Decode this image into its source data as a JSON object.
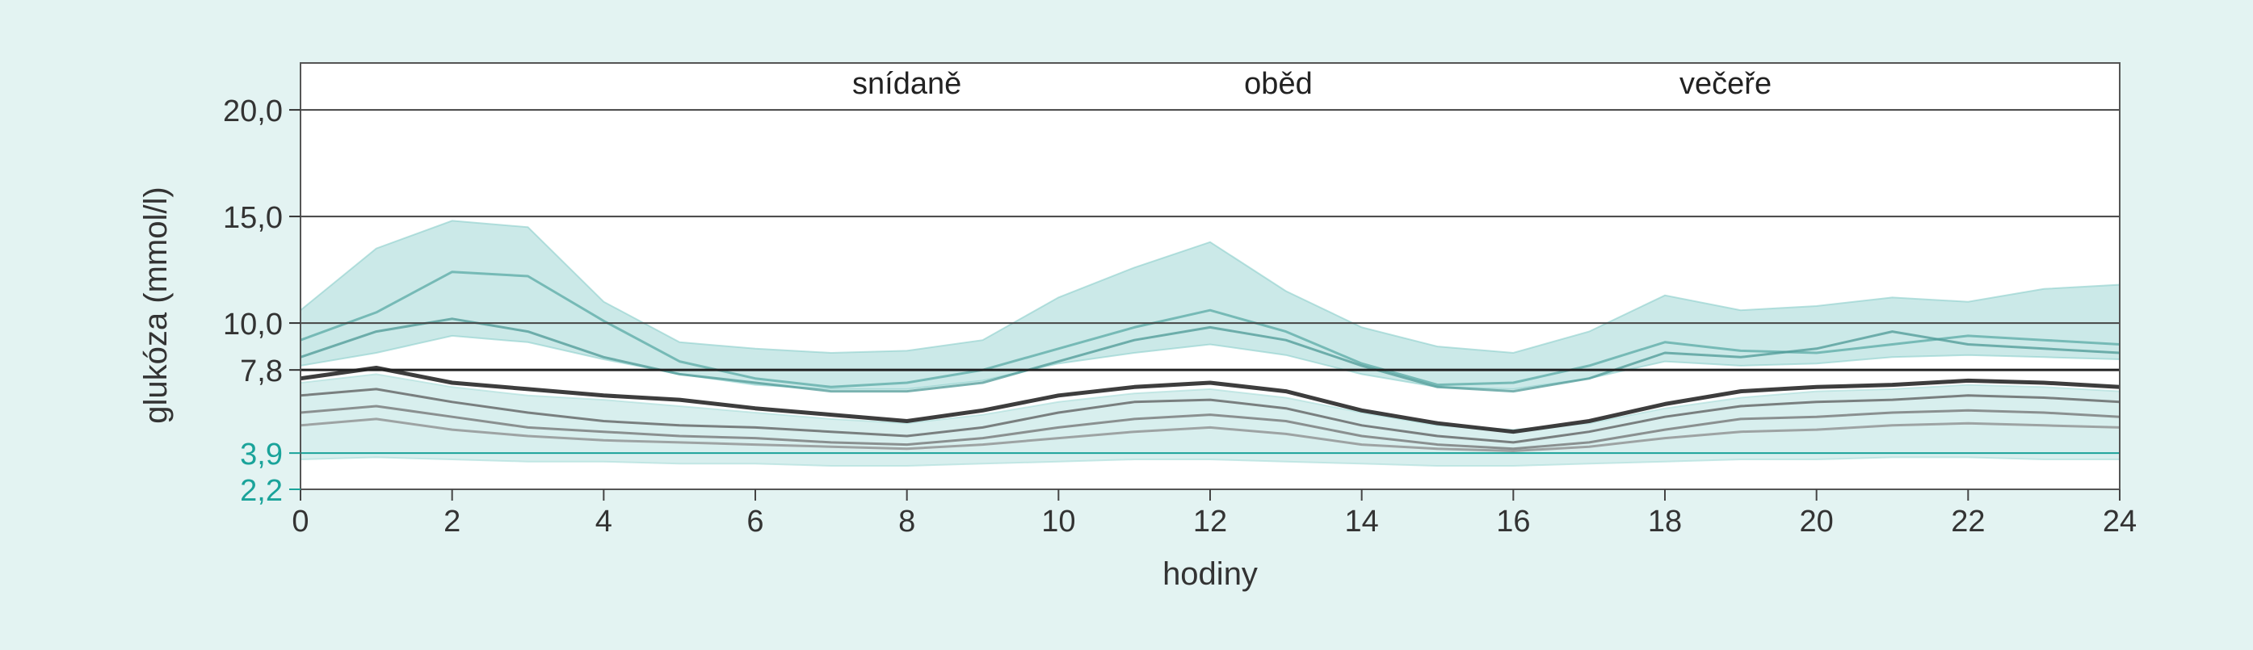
{
  "chart_data": {
    "type": "line",
    "title": "",
    "xlabel": "hodiny",
    "ylabel": "glukóza (mmol/l)",
    "xlim": [
      0,
      24
    ],
    "ylim": [
      2.2,
      22.2
    ],
    "x_ticks": [
      "0",
      "2",
      "4",
      "6",
      "8",
      "10",
      "12",
      "14",
      "16",
      "18",
      "20",
      "22",
      "24"
    ],
    "y_ticks": [
      {
        "value": 2.2,
        "label": "2,2",
        "color": "#1aa39a"
      },
      {
        "value": 3.9,
        "label": "3,9",
        "color": "#1aa39a"
      },
      {
        "value": 7.8,
        "label": "7,8",
        "color": "#333333"
      },
      {
        "value": 10.0,
        "label": "10,0",
        "color": "#333333"
      },
      {
        "value": 15.0,
        "label": "15,0",
        "color": "#333333"
      },
      {
        "value": 20.0,
        "label": "20,0",
        "color": "#333333"
      }
    ],
    "reference_lines": [
      {
        "value": 3.9,
        "color": "#1aa39a"
      },
      {
        "value": 7.8,
        "color": "#222222"
      },
      {
        "value": 10.0,
        "color": "#444444"
      },
      {
        "value": 15.0,
        "color": "#444444"
      },
      {
        "value": 20.0,
        "color": "#444444"
      }
    ],
    "annotations": [
      {
        "x": 8.0,
        "text": "snídaně"
      },
      {
        "x": 12.9,
        "text": "oběd"
      },
      {
        "x": 18.8,
        "text": "večeře"
      }
    ],
    "x": [
      0,
      1,
      2,
      3,
      4,
      5,
      6,
      7,
      8,
      9,
      10,
      11,
      12,
      13,
      14,
      15,
      16,
      17,
      18,
      19,
      20,
      21,
      22,
      23,
      24
    ],
    "series": [
      {
        "color": "#333333",
        "values": [
          7.4,
          7.9,
          7.2,
          6.9,
          6.6,
          6.4,
          6.0,
          5.7,
          5.4,
          5.9,
          6.6,
          7.0,
          7.2,
          6.8,
          5.9,
          5.3,
          4.9,
          5.4,
          6.2,
          6.8,
          7.0,
          7.1,
          7.3,
          7.2,
          7.0
        ]
      },
      {
        "color": "#5a5a5a",
        "values": [
          6.6,
          6.9,
          6.3,
          5.8,
          5.4,
          5.2,
          5.1,
          4.9,
          4.7,
          5.1,
          5.8,
          6.3,
          6.4,
          6.0,
          5.2,
          4.7,
          4.4,
          4.9,
          5.6,
          6.1,
          6.3,
          6.4,
          6.6,
          6.5,
          6.3
        ]
      },
      {
        "color": "#707070",
        "values": [
          5.8,
          6.1,
          5.6,
          5.1,
          4.9,
          4.7,
          4.6,
          4.4,
          4.3,
          4.6,
          5.1,
          5.5,
          5.7,
          5.4,
          4.7,
          4.3,
          4.1,
          4.4,
          5.0,
          5.5,
          5.6,
          5.8,
          5.9,
          5.8,
          5.6
        ]
      },
      {
        "color": "#8a8a8a",
        "values": [
          5.2,
          5.5,
          5.0,
          4.7,
          4.5,
          4.4,
          4.3,
          4.2,
          4.1,
          4.3,
          4.6,
          4.9,
          5.1,
          4.8,
          4.3,
          4.1,
          4.0,
          4.2,
          4.6,
          4.9,
          5.0,
          5.2,
          5.3,
          5.2,
          5.1
        ]
      },
      {
        "color": "#5aa9a6",
        "values": [
          9.2,
          10.5,
          12.4,
          12.2,
          10.1,
          8.2,
          7.4,
          7.0,
          7.2,
          7.8,
          8.8,
          9.8,
          10.6,
          9.6,
          8.1,
          7.1,
          7.2,
          8.0,
          9.1,
          8.7,
          8.6,
          9.0,
          9.4,
          9.2,
          9.0
        ]
      },
      {
        "color": "#4c9895",
        "values": [
          8.4,
          9.6,
          10.2,
          9.6,
          8.4,
          7.6,
          7.2,
          6.8,
          6.8,
          7.2,
          8.2,
          9.2,
          9.8,
          9.2,
          8.0,
          7.0,
          6.8,
          7.4,
          8.6,
          8.4,
          8.8,
          9.6,
          9.0,
          8.8,
          8.6
        ]
      }
    ],
    "bands": [
      {
        "color": "#8ccfcc",
        "upper": [
          10.6,
          13.5,
          14.8,
          14.5,
          11.0,
          9.1,
          8.8,
          8.6,
          8.7,
          9.2,
          11.2,
          12.6,
          13.8,
          11.5,
          9.8,
          8.9,
          8.6,
          9.6,
          11.3,
          10.6,
          10.8,
          11.2,
          11.0,
          11.6,
          11.8
        ],
        "lower": [
          8.0,
          8.6,
          9.4,
          9.1,
          8.3,
          7.6,
          7.1,
          6.9,
          6.9,
          7.3,
          8.1,
          8.6,
          9.0,
          8.5,
          7.6,
          7.0,
          6.9,
          7.4,
          8.2,
          8.0,
          8.1,
          8.4,
          8.5,
          8.4,
          8.3
        ]
      },
      {
        "color": "#a9dcd9",
        "upper": [
          7.2,
          7.6,
          7.0,
          6.6,
          6.4,
          6.1,
          5.8,
          5.5,
          5.3,
          5.7,
          6.3,
          6.7,
          6.9,
          6.5,
          5.8,
          5.2,
          5.0,
          5.3,
          6.0,
          6.5,
          6.8,
          6.9,
          7.1,
          7.0,
          6.8
        ],
        "lower": [
          3.6,
          3.7,
          3.6,
          3.5,
          3.5,
          3.4,
          3.4,
          3.3,
          3.3,
          3.4,
          3.5,
          3.6,
          3.6,
          3.5,
          3.4,
          3.3,
          3.3,
          3.4,
          3.5,
          3.6,
          3.6,
          3.7,
          3.7,
          3.6,
          3.6
        ]
      }
    ],
    "grid": false,
    "legend": "none"
  }
}
